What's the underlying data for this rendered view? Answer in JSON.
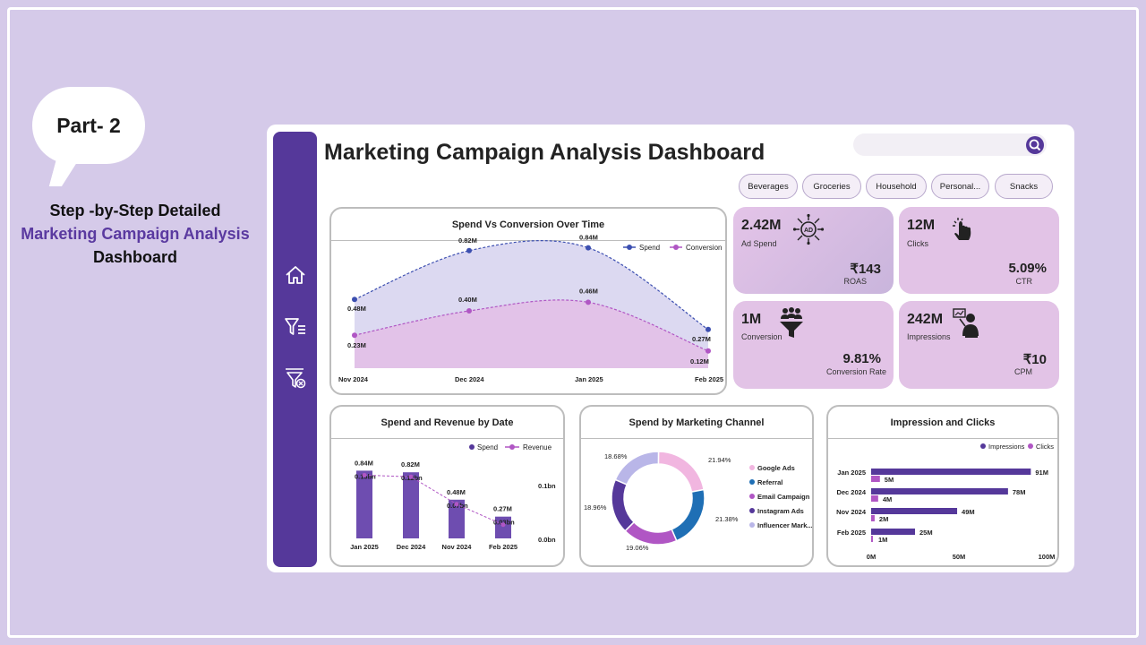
{
  "promo": {
    "part_label": "Part- 2",
    "caption_line1": "Step -by-Step Detailed",
    "caption_line2": "Marketing Campaign Analysis",
    "caption_line3": "Dashboard"
  },
  "dashboard": {
    "title": "Marketing Campaign Analysis Dashboard",
    "search": {
      "placeholder": ""
    },
    "filters": [
      "Beverages",
      "Groceries",
      "Household",
      "Personal...",
      "Snacks"
    ],
    "sidebar_icons": [
      "home-icon",
      "filter-list-icon",
      "filter-clear-icon"
    ]
  },
  "kpis": {
    "ad_spend": {
      "value": "2.42M",
      "label": "Ad Spend",
      "sub_value": "₹143",
      "sub_label": "ROAS",
      "icon": "ad-network-icon"
    },
    "clicks": {
      "value": "12M",
      "label": "Clicks",
      "sub_value": "5.09%",
      "sub_label": "CTR",
      "icon": "pointer-click-icon"
    },
    "conversion": {
      "value": "1M",
      "label": "Conversion",
      "sub_value": "9.81%",
      "sub_label": "Conversion Rate",
      "icon": "people-funnel-icon"
    },
    "impressions": {
      "value": "242M",
      "label": "Impressions",
      "sub_value": "₹10",
      "sub_label": "CPM",
      "icon": "presenter-icon"
    }
  },
  "colors": {
    "primary": "#55389a",
    "spend_line": "#3c4fb0",
    "conversion_line": "#b056c4",
    "kpi_bg": "#e2c3e6",
    "page_bg": "#d5cae9"
  },
  "chart_data": [
    {
      "type": "area",
      "title": "Spend Vs Conversion Over Time",
      "categories": [
        "Nov 2024",
        "Dec 2024",
        "Jan 2025",
        "Feb 2025"
      ],
      "series": [
        {
          "name": "Spend",
          "values": [
            0.48,
            0.82,
            0.84,
            0.27
          ],
          "labels": [
            "0.48M",
            "0.82M",
            "0.84M",
            "0.27M"
          ]
        },
        {
          "name": "Conversion",
          "values": [
            0.23,
            0.4,
            0.46,
            0.12
          ],
          "labels": [
            "0.23M",
            "0.40M",
            "0.46M",
            "0.12M"
          ]
        }
      ],
      "legend": "top-right"
    },
    {
      "type": "bar",
      "title": "Spend and Revenue by Date",
      "categories": [
        "Jan 2025",
        "Dec 2024",
        "Nov 2024",
        "Feb 2025"
      ],
      "series": [
        {
          "name": "Spend",
          "values": [
            0.84,
            0.82,
            0.48,
            0.27
          ],
          "labels": [
            "0.84M",
            "0.82M",
            "0.48M",
            "0.27M"
          ]
        },
        {
          "name": "Revenue",
          "values": [
            0.13,
            0.12,
            0.07,
            0.03
          ],
          "labels": [
            "0.13bn",
            "0.12bn",
            "0.07bn",
            "0.03bn"
          ]
        }
      ],
      "y2_ticks": [
        "0.1bn",
        "0.0bn"
      ],
      "legend": "top-right"
    },
    {
      "type": "pie",
      "title": "Spend by Marketing Channel",
      "categories": [
        "Google Ads",
        "Referral",
        "Email Campaign",
        "Instagram Ads",
        "Influencer Mark..."
      ],
      "values": [
        21.94,
        21.38,
        19.06,
        18.96,
        18.68
      ],
      "labels": [
        "21.94%",
        "21.38%",
        "19.06%",
        "18.96%",
        "18.68%"
      ],
      "colors": [
        "#f1b6e0",
        "#1f6fb5",
        "#b056c4",
        "#55389a",
        "#b9b6e8"
      ],
      "legend": "right"
    },
    {
      "type": "bar",
      "title": "Impression and Clicks",
      "orientation": "horizontal",
      "categories": [
        "Jan 2025",
        "Dec 2024",
        "Nov 2024",
        "Feb 2025"
      ],
      "series": [
        {
          "name": "Impressions",
          "values": [
            91,
            78,
            49,
            25
          ],
          "labels": [
            "91M",
            "78M",
            "49M",
            "25M"
          ]
        },
        {
          "name": "Clicks",
          "values": [
            5,
            4,
            2,
            1
          ],
          "labels": [
            "5M",
            "4M",
            "2M",
            "1M"
          ]
        }
      ],
      "x_ticks": [
        "0M",
        "50M",
        "100M"
      ],
      "xlim": [
        0,
        100
      ],
      "legend": "top-right"
    }
  ]
}
